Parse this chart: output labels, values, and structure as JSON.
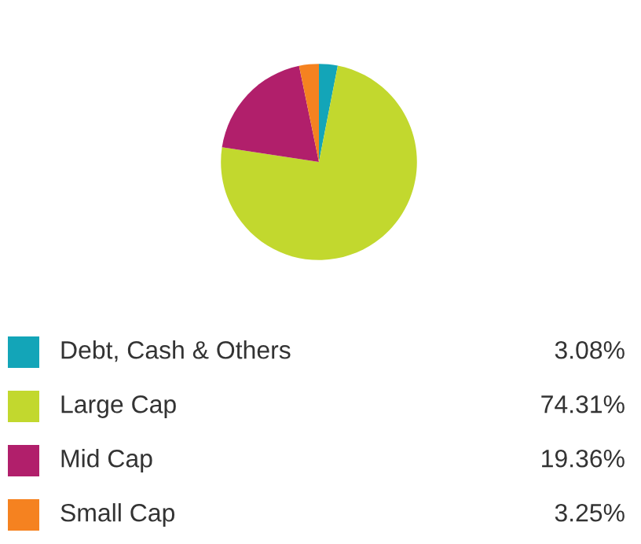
{
  "chart_data": {
    "type": "pie",
    "categories": [
      "Debt, Cash & Others",
      "Large Cap",
      "Mid Cap",
      "Small Cap"
    ],
    "values": [
      3.08,
      74.31,
      19.36,
      3.25
    ],
    "colors": [
      "#13a5b8",
      "#c2d82e",
      "#b11f6b",
      "#f58220"
    ],
    "value_labels": [
      "3.08%",
      "74.31%",
      "19.36%",
      "3.25%"
    ],
    "legend": "bottom"
  }
}
